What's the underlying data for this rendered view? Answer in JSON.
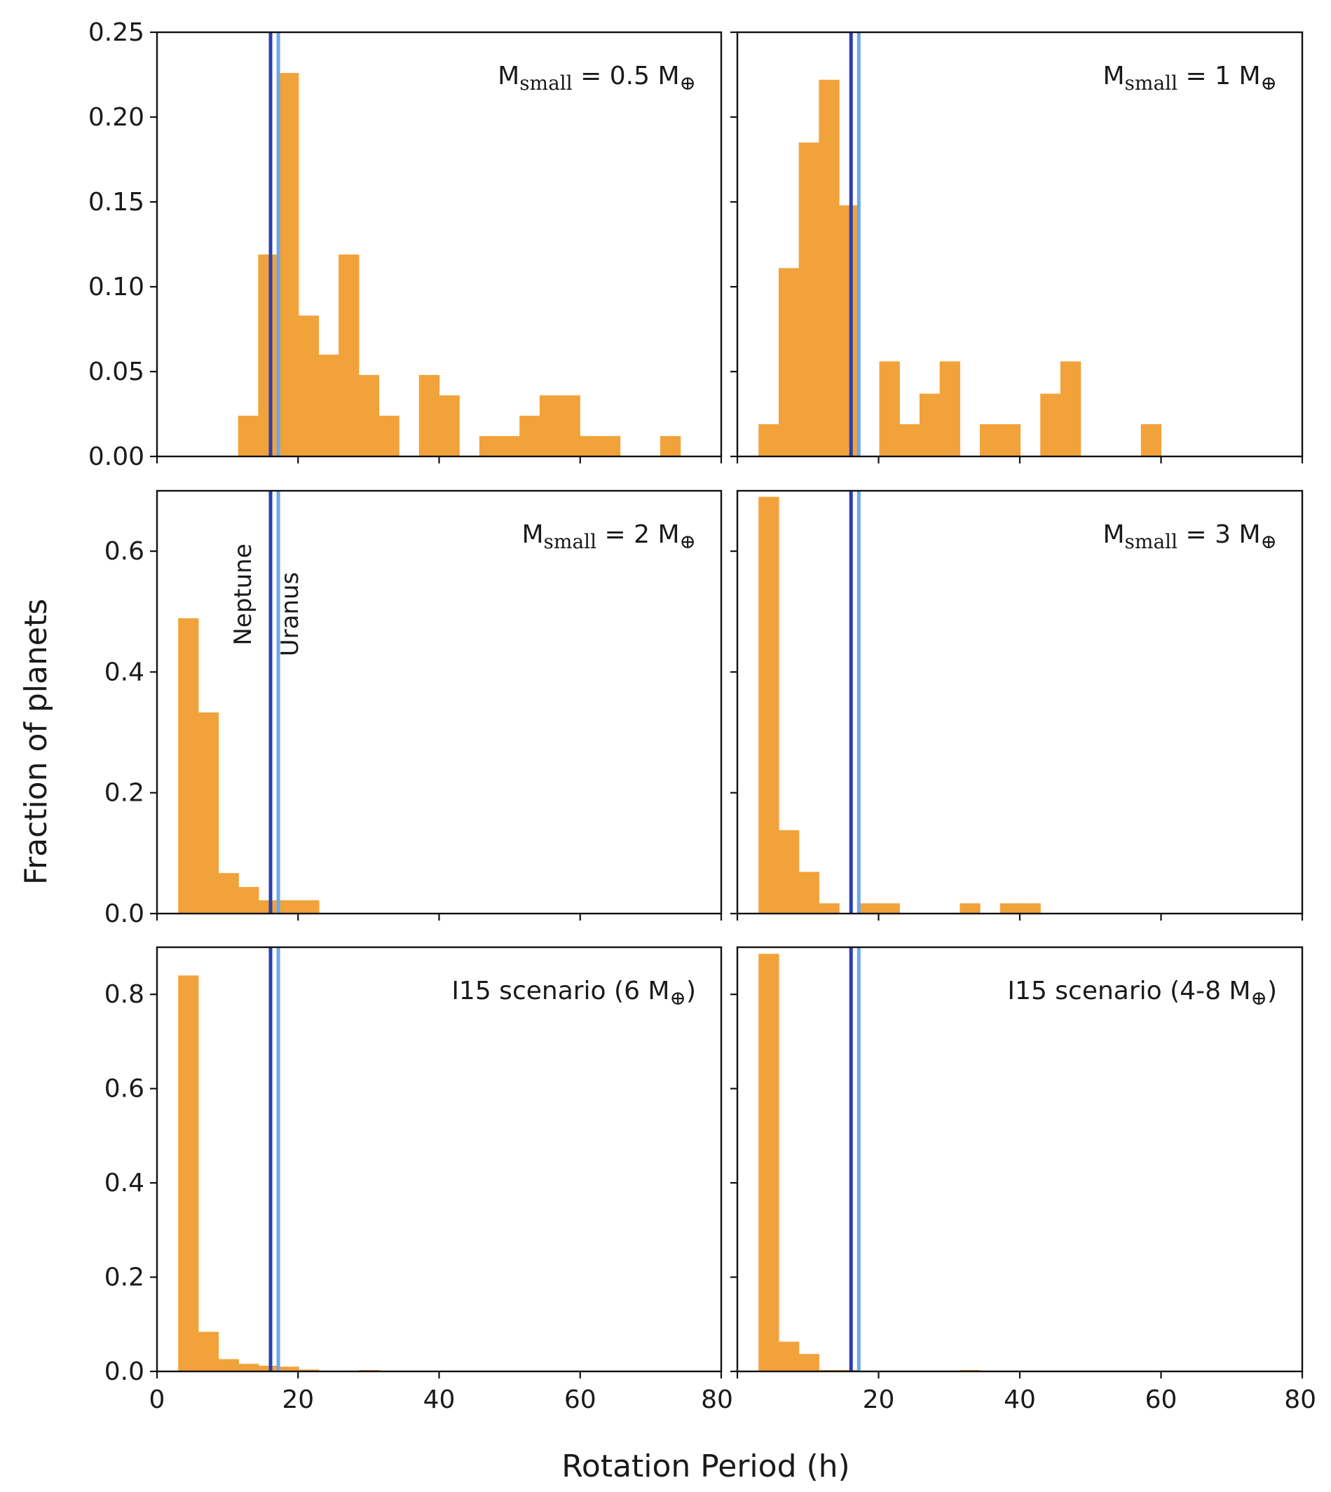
{
  "chart_data": [
    {
      "type": "bar",
      "panel": "top-left",
      "annotation": {
        "main": "M",
        "sub": "small",
        "rest": " = 0.5 M",
        "symbol": "⊕",
        "close": ""
      },
      "xlim": [
        0,
        80
      ],
      "ylim": [
        0,
        0.25
      ],
      "yticks": [
        "0.00",
        "0.05",
        "0.10",
        "0.15",
        "0.20",
        "0.25"
      ],
      "xticks": [],
      "bin_width": 2.85,
      "bins": [
        {
          "x0": 11.5,
          "y": 0.024
        },
        {
          "x0": 14.35,
          "y": 0.119
        },
        {
          "x0": 17.2,
          "y": 0.226
        },
        {
          "x0": 20.05,
          "y": 0.083
        },
        {
          "x0": 22.9,
          "y": 0.06
        },
        {
          "x0": 25.75,
          "y": 0.119
        },
        {
          "x0": 28.6,
          "y": 0.048
        },
        {
          "x0": 31.45,
          "y": 0.024
        },
        {
          "x0": 37.15,
          "y": 0.048
        },
        {
          "x0": 40.0,
          "y": 0.036
        },
        {
          "x0": 45.7,
          "y": 0.012
        },
        {
          "x0": 48.55,
          "y": 0.012
        },
        {
          "x0": 51.4,
          "y": 0.024
        },
        {
          "x0": 54.25,
          "y": 0.036
        },
        {
          "x0": 57.1,
          "y": 0.036
        },
        {
          "x0": 59.95,
          "y": 0.012
        },
        {
          "x0": 62.8,
          "y": 0.012
        },
        {
          "x0": 71.35,
          "y": 0.012
        }
      ]
    },
    {
      "type": "bar",
      "panel": "top-right",
      "annotation": {
        "main": "M",
        "sub": "small",
        "rest": " = 1 M",
        "symbol": "⊕",
        "close": ""
      },
      "xlim": [
        0,
        80
      ],
      "ylim": [
        0,
        0.25
      ],
      "yticks": [],
      "xticks": [],
      "bin_width": 2.85,
      "bins": [
        {
          "x0": 3.0,
          "y": 0.019
        },
        {
          "x0": 5.85,
          "y": 0.111
        },
        {
          "x0": 8.7,
          "y": 0.185
        },
        {
          "x0": 11.55,
          "y": 0.222
        },
        {
          "x0": 14.4,
          "y": 0.148
        },
        {
          "x0": 20.1,
          "y": 0.056
        },
        {
          "x0": 22.95,
          "y": 0.019
        },
        {
          "x0": 25.8,
          "y": 0.037
        },
        {
          "x0": 28.65,
          "y": 0.056
        },
        {
          "x0": 34.35,
          "y": 0.019
        },
        {
          "x0": 37.2,
          "y": 0.019
        },
        {
          "x0": 42.9,
          "y": 0.037
        },
        {
          "x0": 45.75,
          "y": 0.056
        },
        {
          "x0": 57.15,
          "y": 0.019
        }
      ]
    },
    {
      "type": "bar",
      "panel": "middle-left",
      "annotation": {
        "main": "M",
        "sub": "small",
        "rest": " = 2 M",
        "symbol": "⊕",
        "close": ""
      },
      "xlim": [
        0,
        80
      ],
      "ylim": [
        0,
        0.7
      ],
      "yticks": [
        "0.0",
        "0.2",
        "0.4",
        "0.6"
      ],
      "xticks": [],
      "bin_width": 2.85,
      "bins": [
        {
          "x0": 3.0,
          "y": 0.489
        },
        {
          "x0": 5.85,
          "y": 0.333
        },
        {
          "x0": 8.7,
          "y": 0.067
        },
        {
          "x0": 11.55,
          "y": 0.044
        },
        {
          "x0": 14.4,
          "y": 0.022
        },
        {
          "x0": 17.25,
          "y": 0.022
        },
        {
          "x0": 20.1,
          "y": 0.022
        }
      ]
    },
    {
      "type": "bar",
      "panel": "middle-right",
      "annotation": {
        "main": "M",
        "sub": "small",
        "rest": " = 3 M",
        "symbol": "⊕",
        "close": ""
      },
      "xlim": [
        0,
        80
      ],
      "ylim": [
        0,
        0.7
      ],
      "yticks": [],
      "xticks": [],
      "bin_width": 2.85,
      "bins": [
        {
          "x0": 3.0,
          "y": 0.69
        },
        {
          "x0": 5.85,
          "y": 0.138
        },
        {
          "x0": 8.7,
          "y": 0.069
        },
        {
          "x0": 11.55,
          "y": 0.017
        },
        {
          "x0": 17.25,
          "y": 0.017
        },
        {
          "x0": 20.1,
          "y": 0.017
        },
        {
          "x0": 31.5,
          "y": 0.017
        },
        {
          "x0": 37.2,
          "y": 0.017
        },
        {
          "x0": 40.05,
          "y": 0.017
        }
      ]
    },
    {
      "type": "bar",
      "panel": "bottom-left",
      "annotation": {
        "main": "I15 scenario (6 M",
        "sub": "",
        "rest": "",
        "symbol": "⊕",
        "close": ")"
      },
      "xlim": [
        0,
        80
      ],
      "ylim": [
        0,
        0.9
      ],
      "yticks": [
        "0.0",
        "0.2",
        "0.4",
        "0.6",
        "0.8"
      ],
      "xticks": [
        "0",
        "20",
        "40",
        "60",
        "80"
      ],
      "bin_width": 2.85,
      "bins": [
        {
          "x0": 3.0,
          "y": 0.84
        },
        {
          "x0": 5.85,
          "y": 0.084
        },
        {
          "x0": 8.7,
          "y": 0.026
        },
        {
          "x0": 11.55,
          "y": 0.016
        },
        {
          "x0": 14.4,
          "y": 0.012
        },
        {
          "x0": 17.25,
          "y": 0.01
        },
        {
          "x0": 20.1,
          "y": 0.004
        },
        {
          "x0": 28.65,
          "y": 0.003
        }
      ]
    },
    {
      "type": "bar",
      "panel": "bottom-right",
      "annotation": {
        "main": "I15 scenario (4-8 M",
        "sub": "",
        "rest": "",
        "symbol": "⊕",
        "close": ")"
      },
      "xlim": [
        0,
        80
      ],
      "ylim": [
        0,
        0.9
      ],
      "yticks": [],
      "xticks": [
        "20",
        "40",
        "60",
        "80"
      ],
      "bin_width": 2.85,
      "bins": [
        {
          "x0": 3.0,
          "y": 0.886
        },
        {
          "x0": 5.85,
          "y": 0.063
        },
        {
          "x0": 8.7,
          "y": 0.037
        },
        {
          "x0": 11.55,
          "y": 0.003
        },
        {
          "x0": 14.4,
          "y": 0.003
        },
        {
          "x0": 31.5,
          "y": 0.003
        }
      ]
    }
  ],
  "reference_lines": [
    {
      "name": "Neptune",
      "x": 16.1,
      "color": "#2b3fb0"
    },
    {
      "name": "Uranus",
      "x": 17.2,
      "color": "#6aa8ec"
    }
  ],
  "labels": {
    "xlabel": "Rotation Period (h)",
    "ylabel": "Fraction of planets",
    "neptune": "Neptune",
    "uranus": "Uranus"
  },
  "colors": {
    "bar": "#f2a23a",
    "neptune": "#2b3fb0",
    "uranus": "#6aa8ec",
    "axis": "#111111"
  }
}
